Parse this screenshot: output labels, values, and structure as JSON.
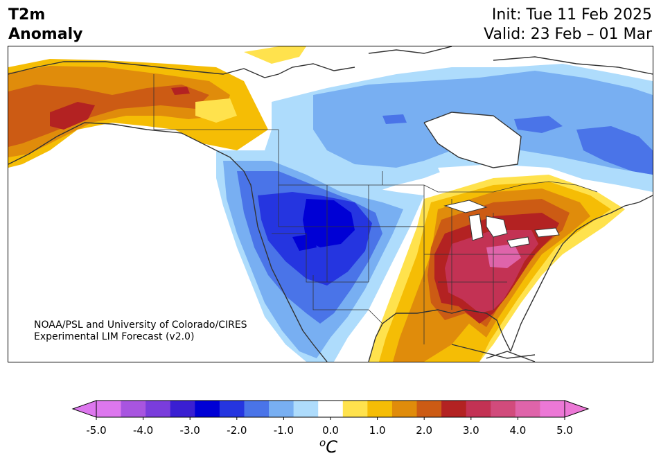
{
  "title": {
    "variable_line1": "T2m",
    "variable_line2": "Anomaly",
    "init": "Init: Tue 11 Feb 2025",
    "valid": "Valid: 23 Feb – 01 Mar"
  },
  "credit": {
    "line1": "NOAA/PSL and University of Colorado/CIRES",
    "line2": "Experimental LIM Forecast (v2.0)"
  },
  "colorbar": {
    "units_base": "C",
    "units_sup": "o",
    "tick_labels": [
      "-5.0",
      "-4.0",
      "-3.0",
      "-2.0",
      "-1.0",
      "0.0",
      "1.0",
      "2.0",
      "3.0",
      "4.0",
      "5.0"
    ],
    "levels": [
      -5.0,
      -4.5,
      -4.0,
      -3.5,
      -3.0,
      -2.5,
      -2.0,
      -1.5,
      -1.0,
      -0.5,
      0.5,
      1.0,
      1.5,
      2.0,
      2.5,
      3.0,
      3.5,
      4.0,
      4.5,
      5.0
    ],
    "colors": [
      "#dd77ee",
      "#a855e0",
      "#7a3ddc",
      "#3a1fd2",
      "#0000d5",
      "#2535e0",
      "#4a74e8",
      "#78aff2",
      "#aedcfc",
      "#ffffff",
      "#ffe24d",
      "#f5bd05",
      "#e08c0b",
      "#cc5b14",
      "#b32222",
      "#c33254",
      "#d14b7c",
      "#df64aa",
      "#ec78d6"
    ],
    "extend": "both"
  },
  "map": {
    "region": "North America",
    "field": "2m temperature anomaly",
    "colors": {
      "land_lines": "#333333",
      "cold_strong": "#0000d5",
      "cold_mid": "#2535e0",
      "cold_light": "#4a74e8",
      "cold_pale": "#78aff2",
      "cold_faint": "#aedcfc",
      "warm_faint": "#ffe24d",
      "warm_light": "#f5bd05",
      "warm_mid": "#e08c0b",
      "warm_strong": "#cc5b14",
      "hot": "#b32222",
      "hot_pink": "#c33254",
      "hottest": "#df64aa"
    }
  }
}
